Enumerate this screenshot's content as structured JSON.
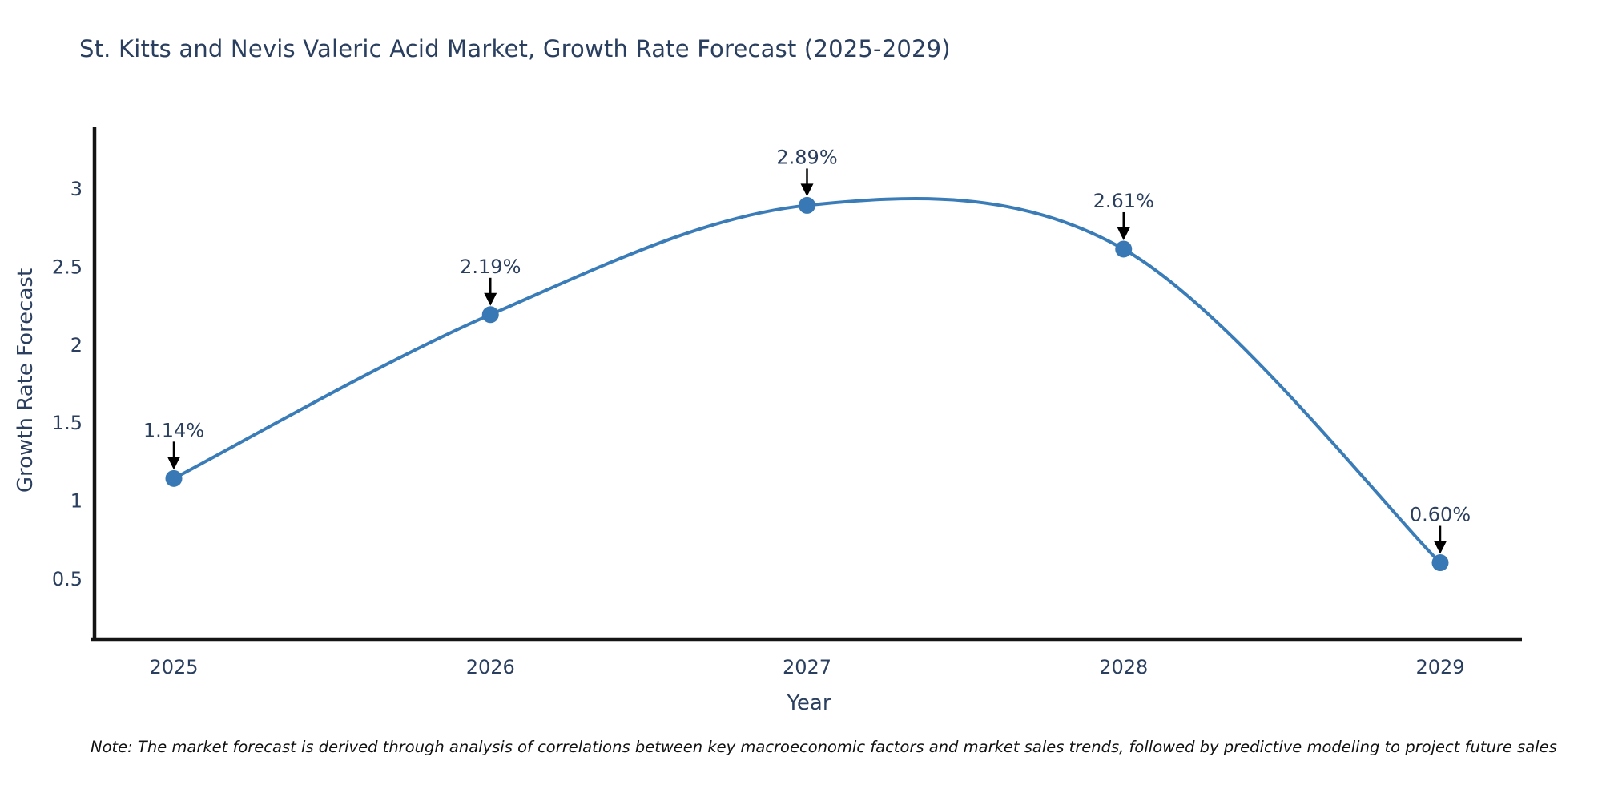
{
  "page": {
    "title": "St. Kitts and Nevis Valeric Acid Market, Growth Rate Forecast (2025-2029)",
    "footnote": "Note: The market forecast is derived through analysis of correlations between key macroeconomic factors and market sales trends, followed by predictive modeling to project future sales"
  },
  "chart_data": {
    "type": "line",
    "title": "St. Kitts and Nevis Valeric Acid Market, Growth Rate Forecast (2025-2029)",
    "x_categories": [
      "2025",
      "2026",
      "2027",
      "2028",
      "2029"
    ],
    "series": [
      {
        "name": "Growth Rate Forecast",
        "values": [
          1.14,
          2.19,
          2.89,
          2.61,
          0.6
        ],
        "point_labels": [
          "1.14%",
          "2.19%",
          "2.89%",
          "2.61%",
          "0.60%"
        ]
      }
    ],
    "xlabel": "Year",
    "ylabel": "Growth Rate Forecast",
    "yticks": [
      "3",
      "2.5",
      "2",
      "1.5",
      "1",
      "0.5"
    ],
    "ytick_values": [
      3,
      2.5,
      2,
      1.5,
      1,
      0.5
    ],
    "ylim": [
      0.06,
      3.38
    ],
    "line_shape": "spline",
    "grid": false,
    "legend": "none",
    "markers": true,
    "annotations": "percentage value labels with black down-arrows above each data point",
    "colors": {
      "line": "#3a7cb8",
      "marker": "#3878b4",
      "axis": "#141414",
      "tick_text": "#2a3f5f",
      "annotation_text": "#2a3f5f",
      "arrow": "#000000",
      "background": "#ffffff"
    }
  }
}
